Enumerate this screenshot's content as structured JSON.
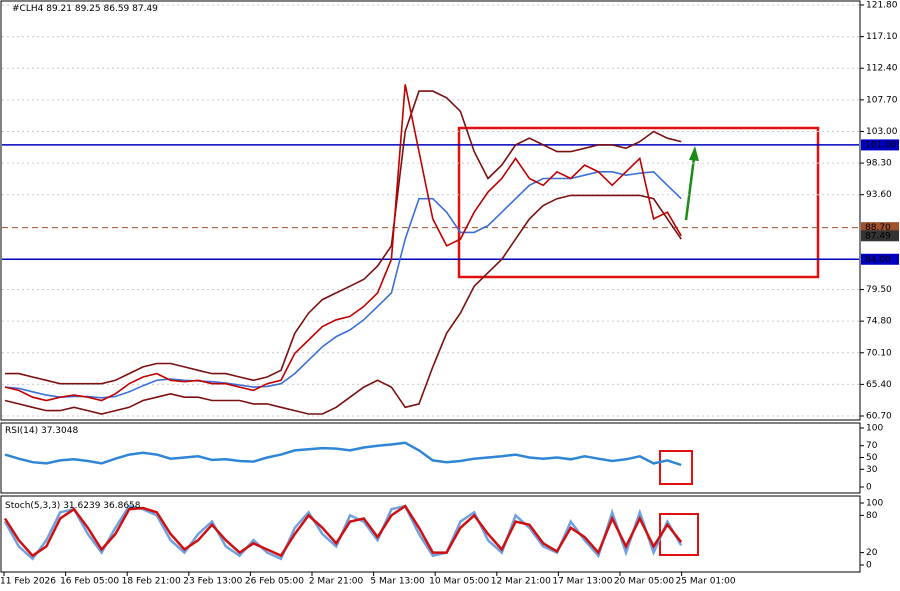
{
  "chart_data": [
    {
      "type": "line",
      "title": "#CLH4",
      "ohlc": [
        89.21,
        89.25,
        86.59,
        87.49
      ],
      "xtick_labels": [
        "11 Feb 2026",
        "16 Feb 05:00",
        "18 Feb 21:00",
        "23 Feb 13:00",
        "26 Feb 05:00",
        "2 Mar 21:00",
        "5 Mar 13:00",
        "10 Mar 05:00",
        "12 Mar 21:00",
        "17 Mar 13:00",
        "20 Mar 05:00",
        "25 Mar 01:00"
      ],
      "ylim": [
        60.7,
        121.8
      ],
      "yticks": [
        {
          "value": 121.8,
          "label": "121.80"
        },
        {
          "value": 117.1,
          "label": "117.10"
        },
        {
          "value": 112.4,
          "label": "112.40"
        },
        {
          "value": 107.7,
          "label": "107.70"
        },
        {
          "value": 103,
          "label": "103.00"
        },
        {
          "value": 98.3,
          "label": "98.30"
        },
        {
          "value": 93.6,
          "label": "93.60"
        },
        {
          "value": 79.5,
          "label": "79.50"
        },
        {
          "value": 74.8,
          "label": "74.80"
        },
        {
          "value": 70.1,
          "label": "70.10"
        },
        {
          "value": 65.4,
          "label": "65.40"
        },
        {
          "value": 60.7,
          "label": "60.70"
        }
      ],
      "grid": true,
      "levels": [
        {
          "value": 101,
          "label": "101.00",
          "color": "#0000c0"
        },
        {
          "value": 84,
          "label": "84.00",
          "color": "#0000c0"
        },
        {
          "value": 88.7,
          "label": "88.70",
          "color": "#a0522d"
        },
        {
          "value": 87.49,
          "label": "87.49",
          "color": "#333333"
        }
      ],
      "series": [
        {
          "name": "Upper band",
          "color": "#7b1010",
          "values": [
            67,
            67,
            66.5,
            66,
            65.5,
            65.5,
            65.5,
            65.5,
            66,
            67,
            68,
            68.5,
            68.5,
            68,
            67.5,
            67,
            67,
            66.5,
            66,
            66.5,
            67.5,
            73,
            76,
            78,
            79,
            80,
            81,
            83,
            86,
            103,
            109,
            109,
            108,
            106,
            100,
            96,
            98,
            101,
            102,
            101,
            100,
            100,
            100.5,
            101,
            101,
            100.5,
            101.5,
            103,
            102,
            101.5
          ]
        },
        {
          "name": "Lower band",
          "color": "#7b1010",
          "values": [
            63,
            62.5,
            62,
            61.5,
            61.5,
            62,
            61.5,
            61,
            61.5,
            62,
            63,
            63.5,
            64,
            63.5,
            63.5,
            63,
            63,
            63,
            62.5,
            62.5,
            62,
            61.5,
            61,
            61,
            62,
            63.5,
            65,
            66,
            65,
            62,
            62.5,
            68,
            73,
            76,
            80,
            82,
            84,
            87,
            90,
            92,
            93,
            93.5,
            93.5,
            93.5,
            93.5,
            93.5,
            93.5,
            93,
            90,
            87
          ]
        },
        {
          "name": "MA",
          "color": "#3c6fd6",
          "values": [
            65,
            64.8,
            64.3,
            63.8,
            63.5,
            63.6,
            63.6,
            63.4,
            63.6,
            64.3,
            65.2,
            66,
            66.2,
            66,
            65.9,
            65.8,
            65.6,
            65.3,
            65,
            65.1,
            65.5,
            67,
            69,
            71,
            72.5,
            73.5,
            75,
            77,
            79,
            87,
            93,
            93,
            91,
            88,
            88,
            89,
            91,
            93,
            95,
            96,
            96,
            96,
            96.5,
            97,
            97,
            96.5,
            96.8,
            97,
            95,
            93
          ]
        },
        {
          "name": "Close",
          "color": "#c00000",
          "values": [
            65,
            64.5,
            63.5,
            63,
            63.5,
            63.8,
            63.5,
            63,
            64,
            65.5,
            66.5,
            67,
            66,
            65.8,
            66,
            65.5,
            65.5,
            65,
            64.5,
            65.5,
            66,
            70,
            72,
            74,
            75,
            75.5,
            77,
            79,
            84,
            110,
            100,
            90,
            86,
            87,
            91,
            94,
            96,
            99,
            96,
            95,
            97,
            96,
            98,
            97,
            95,
            97,
            99,
            90,
            91,
            87.49
          ]
        }
      ]
    },
    {
      "type": "line",
      "title": "RSI(14)",
      "last": 37.3048,
      "ylim": [
        0,
        100
      ],
      "yticks": [
        0,
        30,
        50,
        70,
        100
      ],
      "series": [
        {
          "name": "RSI",
          "color": "#2f86d6",
          "values": [
            55,
            48,
            42,
            40,
            45,
            47,
            44,
            40,
            48,
            55,
            58,
            55,
            48,
            50,
            52,
            46,
            47,
            44,
            43,
            50,
            55,
            62,
            64,
            66,
            65,
            62,
            67,
            70,
            72,
            75,
            62,
            45,
            42,
            44,
            48,
            50,
            52,
            55,
            50,
            48,
            50,
            47,
            52,
            48,
            44,
            47,
            52,
            40,
            45,
            37.3048
          ]
        }
      ]
    },
    {
      "type": "line",
      "title": "Stoch(5,3,3)",
      "last": [
        31.6239,
        36.8658
      ],
      "ylim": [
        0,
        100
      ],
      "yticks": [
        0,
        20,
        80,
        100
      ],
      "series": [
        {
          "name": "%K",
          "color": "#6fa0e0",
          "values": [
            70,
            30,
            10,
            40,
            85,
            90,
            50,
            20,
            60,
            95,
            90,
            80,
            40,
            20,
            50,
            70,
            30,
            15,
            40,
            20,
            10,
            60,
            85,
            50,
            30,
            80,
            70,
            40,
            90,
            95,
            50,
            15,
            20,
            70,
            85,
            40,
            20,
            80,
            60,
            30,
            20,
            70,
            40,
            15,
            85,
            20,
            85,
            20,
            70,
            31.6239
          ]
        },
        {
          "name": "%D",
          "color": "#d01010",
          "values": [
            75,
            40,
            15,
            30,
            75,
            90,
            60,
            25,
            50,
            90,
            92,
            85,
            50,
            25,
            40,
            65,
            40,
            20,
            35,
            25,
            15,
            50,
            80,
            60,
            35,
            70,
            75,
            45,
            80,
            95,
            60,
            20,
            20,
            60,
            80,
            50,
            25,
            70,
            65,
            35,
            22,
            60,
            45,
            20,
            75,
            30,
            75,
            30,
            65,
            36.8658
          ]
        }
      ]
    }
  ]
}
